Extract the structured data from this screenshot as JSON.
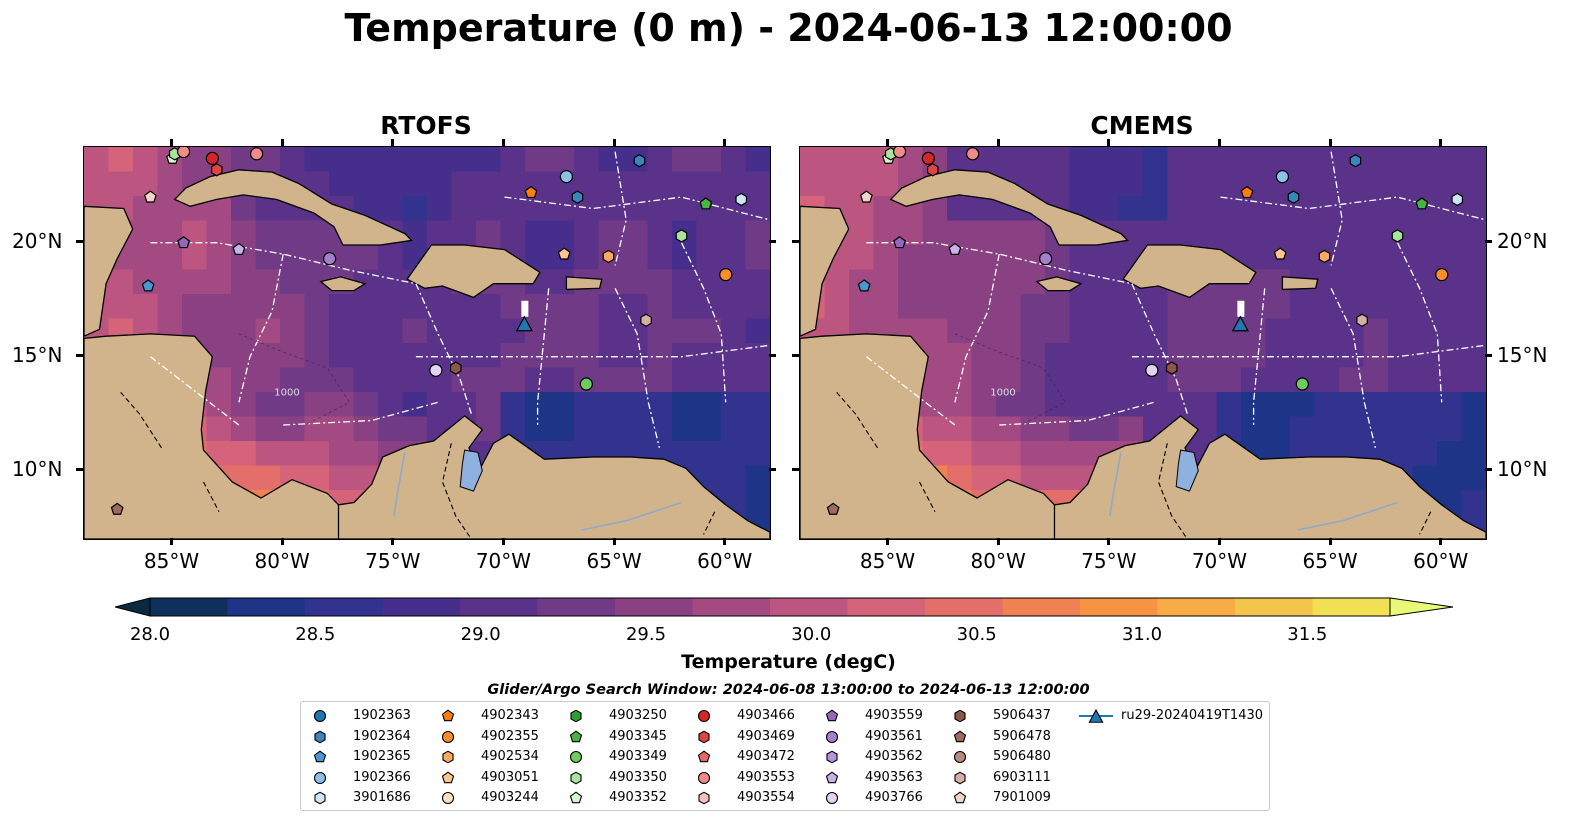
{
  "title": "Temperature (0 m) - 2024-06-13 12:00:00",
  "panels": [
    {
      "title": "RTOFS",
      "variant": "rtofs"
    },
    {
      "title": "CMEMS",
      "variant": "cmems"
    }
  ],
  "axes": {
    "lon_ticks": [
      "85°W",
      "80°W",
      "75°W",
      "70°W",
      "65°W",
      "60°W"
    ],
    "lat_ticks": [
      "20°N",
      "15°N",
      "10°N"
    ],
    "lon_values": [
      -85,
      -80,
      -75,
      -70,
      -65,
      -60
    ],
    "lat_values": [
      20,
      15,
      10
    ],
    "extent": {
      "lon": [
        -89,
        -58
      ],
      "lat": [
        7,
        24.2
      ]
    }
  },
  "colorbar": {
    "label": "Temperature (degC)",
    "ticks": [
      "28.0",
      "28.5",
      "29.0",
      "29.5",
      "30.0",
      "30.5",
      "31.0",
      "31.5"
    ],
    "tick_values": [
      28.0,
      28.5,
      29.0,
      29.5,
      30.0,
      30.5,
      31.0,
      31.5
    ],
    "range": [
      28.0,
      31.75
    ],
    "extend": "both",
    "colors": [
      "#0a2a3f",
      "#0d2f5c",
      "#1e3487",
      "#32328f",
      "#452e8c",
      "#5a3289",
      "#713a87",
      "#8a4184",
      "#a34a83",
      "#bc5680",
      "#d5647a",
      "#e46f6a",
      "#ef8152",
      "#f69444",
      "#f7ac45",
      "#f3c54a",
      "#f2e054",
      "#e8f977"
    ]
  },
  "contour_label": "1000",
  "search_window": "Glider/Argo Search Window: 2024-06-08 13:00:00 to 2024-06-13 12:00:00",
  "legend": {
    "items": [
      {
        "label": "1902363",
        "color": "#1f77b4",
        "marker": "circle"
      },
      {
        "label": "1902364",
        "color": "#3a86c0",
        "marker": "hexagon"
      },
      {
        "label": "1902365",
        "color": "#4b97d6",
        "marker": "pentagon"
      },
      {
        "label": "1902366",
        "color": "#8fc1e8",
        "marker": "circle"
      },
      {
        "label": "3901686",
        "color": "#cfe5f7",
        "marker": "hexagon"
      },
      {
        "label": "4902343",
        "color": "#ff7f0e",
        "marker": "pentagon"
      },
      {
        "label": "4902355",
        "color": "#ff8c2a",
        "marker": "circle"
      },
      {
        "label": "4902534",
        "color": "#ffa95e",
        "marker": "hexagon"
      },
      {
        "label": "4903051",
        "color": "#ffc58e",
        "marker": "pentagon"
      },
      {
        "label": "4903244",
        "color": "#ffe2c4",
        "marker": "circle"
      },
      {
        "label": "4903250",
        "color": "#2ca02c",
        "marker": "hexagon"
      },
      {
        "label": "4903345",
        "color": "#45b545",
        "marker": "pentagon"
      },
      {
        "label": "4903349",
        "color": "#6ecb5e",
        "marker": "circle"
      },
      {
        "label": "4903350",
        "color": "#a6e59a",
        "marker": "hexagon"
      },
      {
        "label": "4903352",
        "color": "#d7f5cf",
        "marker": "pentagon"
      },
      {
        "label": "4903466",
        "color": "#d62728",
        "marker": "circle"
      },
      {
        "label": "4903469",
        "color": "#e04545",
        "marker": "hexagon"
      },
      {
        "label": "4903472",
        "color": "#e86666",
        "marker": "pentagon"
      },
      {
        "label": "4903553",
        "color": "#f28c8c",
        "marker": "circle"
      },
      {
        "label": "4903554",
        "color": "#f9c0c0",
        "marker": "hexagon"
      },
      {
        "label": "4903559",
        "color": "#9467bd",
        "marker": "pentagon"
      },
      {
        "label": "4903561",
        "color": "#a47fcc",
        "marker": "circle"
      },
      {
        "label": "4903562",
        "color": "#b596dd",
        "marker": "hexagon"
      },
      {
        "label": "4903563",
        "color": "#c9b2ea",
        "marker": "pentagon"
      },
      {
        "label": "4903766",
        "color": "#e2d2f5",
        "marker": "circle"
      },
      {
        "label": "5906437",
        "color": "#8c564b",
        "marker": "hexagon"
      },
      {
        "label": "5906478",
        "color": "#9c6a5e",
        "marker": "pentagon"
      },
      {
        "label": "5906480",
        "color": "#b88a7f",
        "marker": "circle"
      },
      {
        "label": "6903111",
        "color": "#d4b0a6",
        "marker": "hexagon"
      },
      {
        "label": "7901009",
        "color": "#f0d4cc",
        "marker": "pentagon"
      },
      {
        "label": "ru29-20240419T1430",
        "color": "#1f77b4",
        "marker": "triangle-line"
      }
    ]
  },
  "platforms": [
    {
      "id": "4903352",
      "lon": -85.0,
      "lat": 23.7
    },
    {
      "id": "4903350",
      "lon": -84.9,
      "lat": 23.9
    },
    {
      "id": "4903553",
      "lon": -84.5,
      "lat": 24.0
    },
    {
      "id": "4903466",
      "lon": -83.2,
      "lat": 23.7
    },
    {
      "id": "4903469",
      "lon": -83.0,
      "lat": 23.2
    },
    {
      "id": "4903553",
      "lon": -81.2,
      "lat": 23.9
    },
    {
      "id": "7901009",
      "lon": -86.0,
      "lat": 22.0
    },
    {
      "id": "4903559",
      "lon": -84.5,
      "lat": 20.0
    },
    {
      "id": "4903563",
      "lon": -82.0,
      "lat": 19.7
    },
    {
      "id": "4903561",
      "lon": -77.9,
      "lat": 19.3
    },
    {
      "id": "1902365",
      "lon": -86.1,
      "lat": 18.1
    },
    {
      "id": "4903766",
      "lon": -73.1,
      "lat": 14.4
    },
    {
      "id": "5906437",
      "lon": -72.2,
      "lat": 14.5
    },
    {
      "id": "1902366",
      "lon": -67.2,
      "lat": 22.9
    },
    {
      "id": "1902364",
      "lon": -66.7,
      "lat": 22.0
    },
    {
      "id": "4902343",
      "lon": -68.8,
      "lat": 22.2
    },
    {
      "id": "1902364",
      "lon": -63.9,
      "lat": 23.6
    },
    {
      "id": "4903051",
      "lon": -67.3,
      "lat": 19.5
    },
    {
      "id": "4902534",
      "lon": -65.3,
      "lat": 19.4
    },
    {
      "id": "4903345",
      "lon": -60.9,
      "lat": 21.7
    },
    {
      "id": "3901686",
      "lon": -59.3,
      "lat": 21.9
    },
    {
      "id": "4903350",
      "lon": -62.0,
      "lat": 20.3
    },
    {
      "id": "4902355",
      "lon": -60.0,
      "lat": 18.6
    },
    {
      "id": "6903111",
      "lon": -63.6,
      "lat": 16.6
    },
    {
      "id": "4903349",
      "lon": -66.3,
      "lat": 13.8
    },
    {
      "id": "5906478",
      "lon": -87.5,
      "lat": 8.3
    },
    {
      "id": "ru29-20240419T1430",
      "lon": -69.1,
      "lat": 16.4,
      "marker": "triangle"
    }
  ]
}
